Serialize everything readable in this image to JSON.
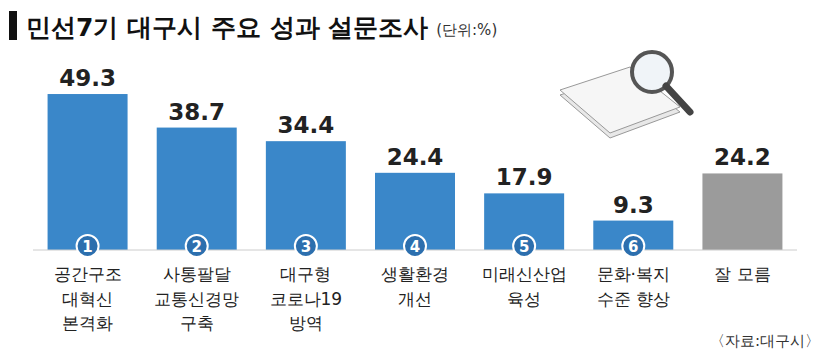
{
  "chart_data": {
    "type": "bar",
    "title": "민선7기 대구시 주요 성과 설문조사",
    "subtitle": "(단위:%)",
    "categories": [
      "공간구조\n대혁신\n본격화",
      "사통팔달\n교통신경망\n구축",
      "대구형\n코로나19\n방역",
      "생활환경\n개선",
      "미래신산업\n육성",
      "문화·복지\n수준 향상",
      "잘 모름"
    ],
    "category_numbers": [
      "1",
      "2",
      "3",
      "4",
      "5",
      "6"
    ],
    "values": [
      49.3,
      38.7,
      34.4,
      24.4,
      17.9,
      9.3,
      24.2
    ],
    "colors": [
      "#3a87c9",
      "#3a87c9",
      "#3a87c9",
      "#3a87c9",
      "#3a87c9",
      "#3a87c9",
      "#9b9b9b"
    ],
    "ylim": [
      0,
      55
    ],
    "data_labels": true,
    "tick_labels": false,
    "grid": false,
    "source": "〈자료:대구시〉"
  }
}
